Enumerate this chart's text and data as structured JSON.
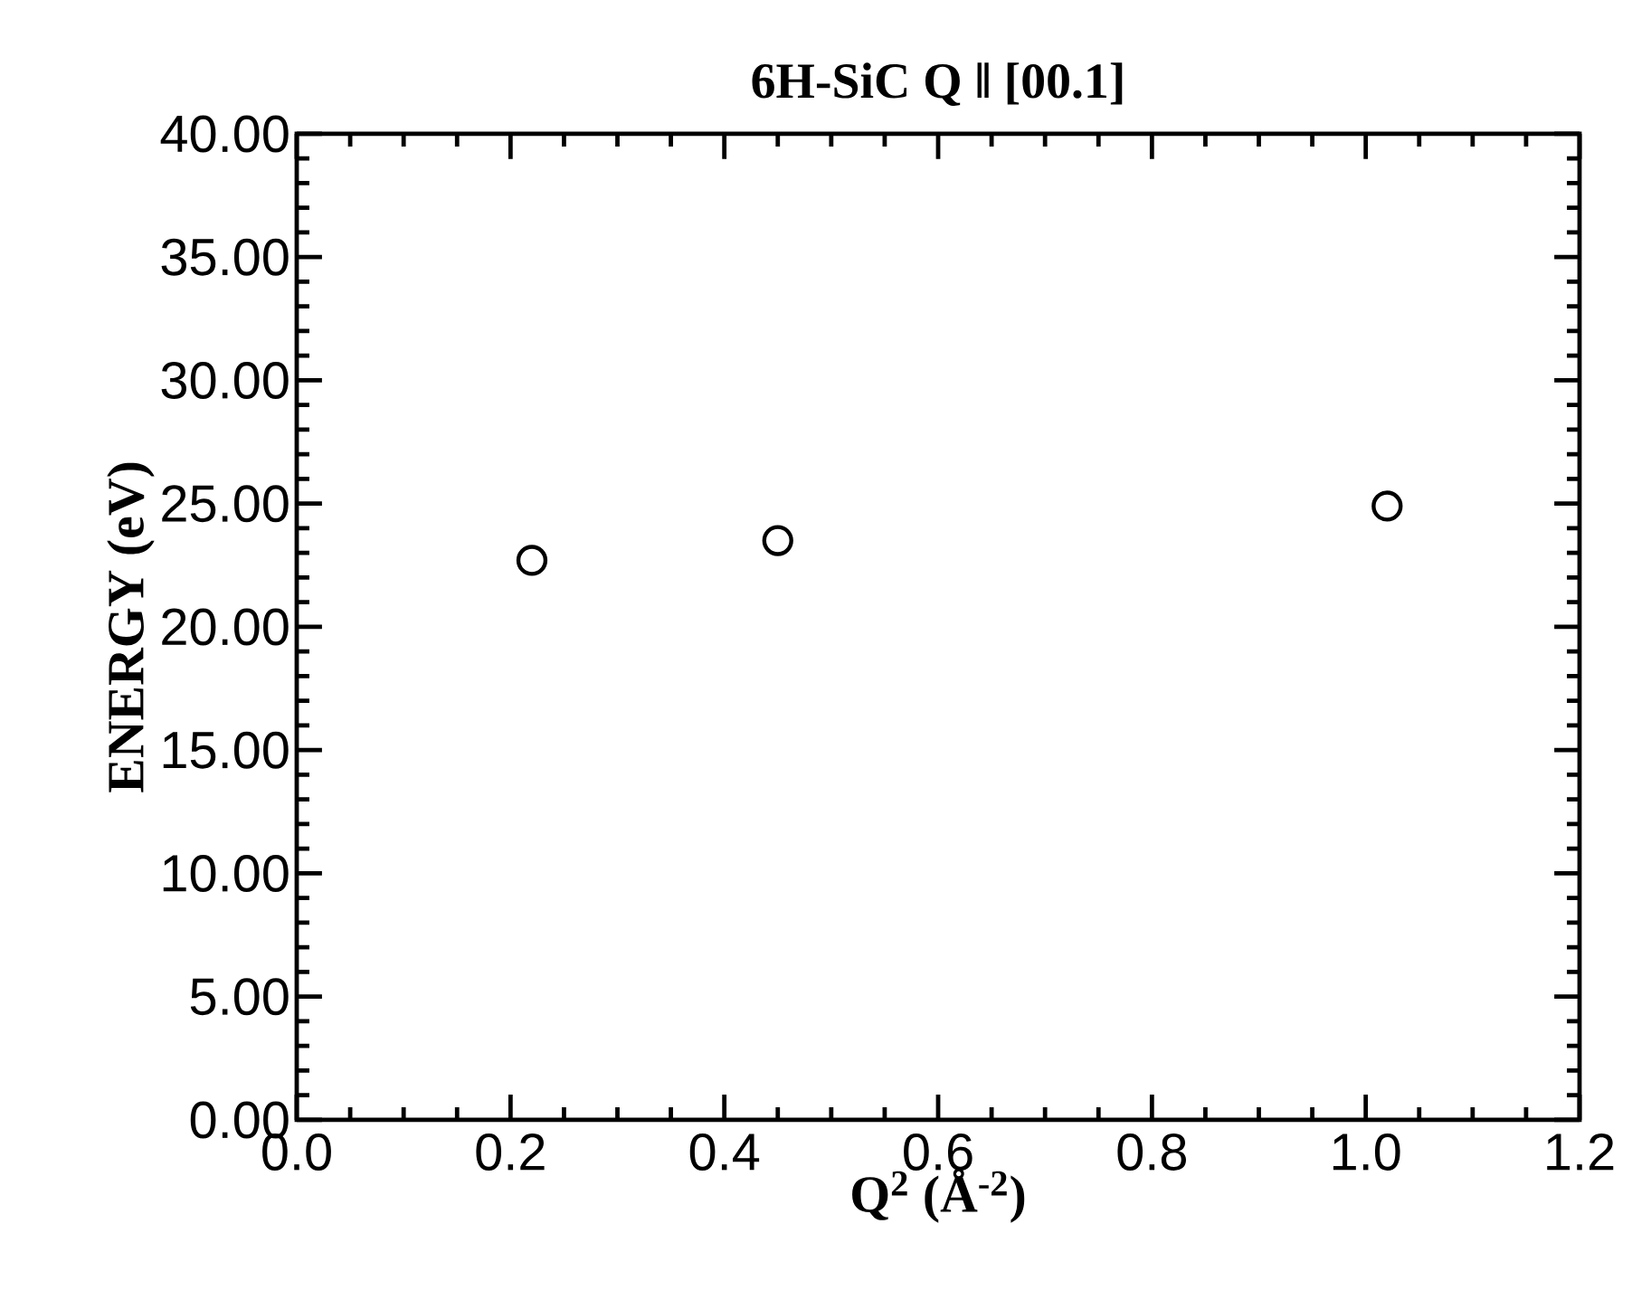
{
  "chart_data": {
    "type": "scatter",
    "title": "6H-SiC  Q ‖ [00.1]",
    "xlabel": "Q$^{2}$ (Å$^{-2}$)",
    "ylabel": "ENERGY (eV)",
    "x": [
      0.22,
      0.45,
      1.02
    ],
    "values": [
      22.7,
      23.5,
      24.9
    ],
    "color": "#000000",
    "marker": "circle",
    "xlim": [
      0,
      1.2
    ],
    "xticks": [
      {
        "value": 0,
        "label": "0.0"
      },
      {
        "value": 0.2,
        "label": "0.2"
      },
      {
        "value": 0.4,
        "label": "0.4"
      },
      {
        "value": 0.6,
        "label": "0.6"
      },
      {
        "value": 0.8,
        "label": "0.8"
      },
      {
        "value": 1.0,
        "label": "1.0"
      },
      {
        "value": 1.2,
        "label": "1.2"
      }
    ],
    "ylim": [
      0,
      40
    ],
    "yticks": [
      {
        "value": 0,
        "label": "0.00"
      },
      {
        "value": 5,
        "label": "5.00"
      },
      {
        "value": 10,
        "label": "10.00"
      },
      {
        "value": 15,
        "label": "15.00"
      },
      {
        "value": 20,
        "label": "20.00"
      },
      {
        "value": 25,
        "label": "25.00"
      },
      {
        "value": 30,
        "label": "30.00"
      },
      {
        "value": 35,
        "label": "35.00"
      },
      {
        "value": 40,
        "label": "40.00"
      }
    ]
  }
}
